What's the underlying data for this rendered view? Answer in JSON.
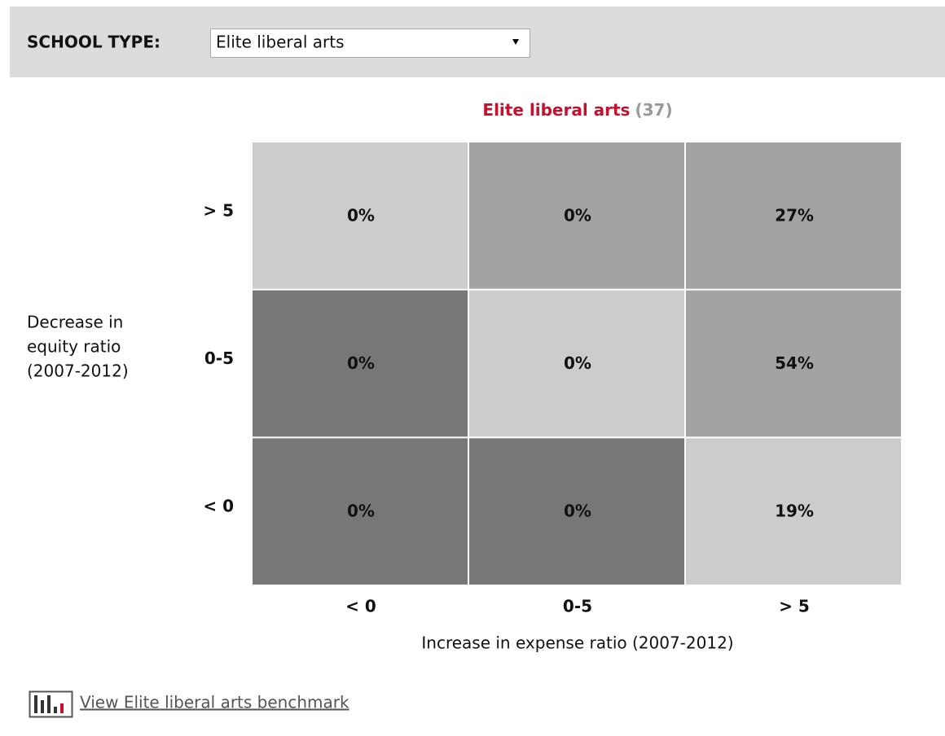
{
  "header": {
    "label": "SCHOOL TYPE:",
    "select": "Elite liberal arts"
  },
  "chart_data": {
    "type": "heatmap",
    "title": "Elite liberal arts",
    "title_count": {
      "value": 37,
      "label": "(37)"
    },
    "y_label": [
      "Decrease in",
      "equity ratio",
      "(2007-2012)"
    ],
    "x_label": "Increase in expense ratio (2007-2012)",
    "x_categories": [
      "< 0",
      "0-5",
      "> 5"
    ],
    "y_categories": [
      "> 5",
      "0-5",
      "< 0"
    ],
    "values": [
      [
        0,
        0,
        27
      ],
      [
        0,
        0,
        54
      ],
      [
        0,
        0,
        19
      ]
    ],
    "value_labels": [
      [
        "0%",
        "0%",
        "27%"
      ],
      [
        "0%",
        "0%",
        "54%"
      ],
      [
        "0%",
        "0%",
        "19%"
      ]
    ],
    "colors": [
      [
        "#cccccc",
        "#a3a3a3",
        "#a3a3a3"
      ],
      [
        "#777777",
        "#cccccc",
        "#a3a3a3"
      ],
      [
        "#777777",
        "#777777",
        "#cccccc"
      ]
    ]
  },
  "link": "View Elite liberal arts benchmark"
}
